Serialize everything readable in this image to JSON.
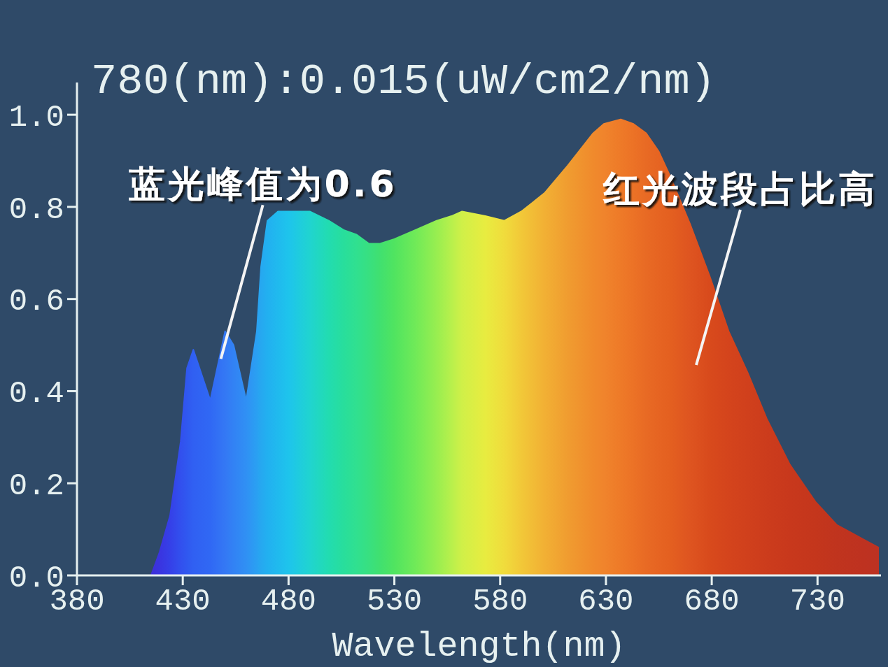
{
  "chart_data": {
    "type": "area",
    "xlabel": "Wavelength(nm)",
    "annotations": [
      "780(nm):0.015(uW/cm2/nm)",
      {
        "text": "蓝光峰值为0.6",
        "x": 448,
        "y": 0.47
      },
      "红光波段占比高"
    ],
    "x": [
      415,
      419,
      424,
      429,
      432,
      435,
      443,
      450,
      454,
      460,
      465,
      467,
      470,
      475,
      480,
      490,
      499,
      506,
      512,
      518,
      523,
      530,
      540,
      550,
      557,
      562,
      573,
      582,
      590,
      601,
      612,
      624,
      629,
      637,
      643,
      649,
      655,
      660,
      670,
      679,
      688,
      697,
      706,
      717,
      729,
      739,
      751,
      759
    ],
    "values": [
      0.0,
      0.05,
      0.13,
      0.29,
      0.45,
      0.49,
      0.38,
      0.53,
      0.5,
      0.38,
      0.53,
      0.67,
      0.77,
      0.79,
      0.79,
      0.79,
      0.77,
      0.75,
      0.74,
      0.72,
      0.72,
      0.73,
      0.75,
      0.77,
      0.78,
      0.79,
      0.78,
      0.77,
      0.79,
      0.83,
      0.89,
      0.96,
      0.98,
      0.99,
      0.98,
      0.96,
      0.92,
      0.87,
      0.76,
      0.65,
      0.53,
      0.44,
      0.34,
      0.24,
      0.16,
      0.11,
      0.08,
      0.06
    ],
    "colors": [
      "#3c2fd8",
      "#3a34e0",
      "#3540e8",
      "#3250ee",
      "#3058f0",
      "#3060f2",
      "#3068f4",
      "#3478f4",
      "#3282f4",
      "#3090f4",
      "#2aa0f2",
      "#26a8f0",
      "#22b0f0",
      "#20baee",
      "#1ec4ec",
      "#20d4d0",
      "#22dcb0",
      "#28de9c",
      "#30e090",
      "#38e080",
      "#40e070",
      "#50e460",
      "#70ea58",
      "#98ee50",
      "#b8f04c",
      "#d0f048",
      "#e8ec40",
      "#f0dc3c",
      "#f2c838",
      "#f2b034",
      "#f09c30",
      "#f08a2c",
      "#f0842c",
      "#ee7a28",
      "#ec7226",
      "#e86a24",
      "#e66422",
      "#e46020",
      "#de5420",
      "#d84a1c",
      "#d4441c",
      "#d0401c",
      "#cc3c1c",
      "#c8381c",
      "#c4361c",
      "#c0341e",
      "#be3220",
      "#bc3222"
    ],
    "xlim": [
      380,
      760
    ],
    "xticks": [
      380,
      430,
      480,
      530,
      580,
      630,
      680,
      730
    ],
    "ylim": [
      0,
      1.07
    ],
    "yticks": [
      {
        "value": 0,
        "label": "0.0"
      },
      0.2,
      0.4,
      0.6,
      0.8,
      {
        "value": 1,
        "label": "1.0"
      }
    ]
  }
}
